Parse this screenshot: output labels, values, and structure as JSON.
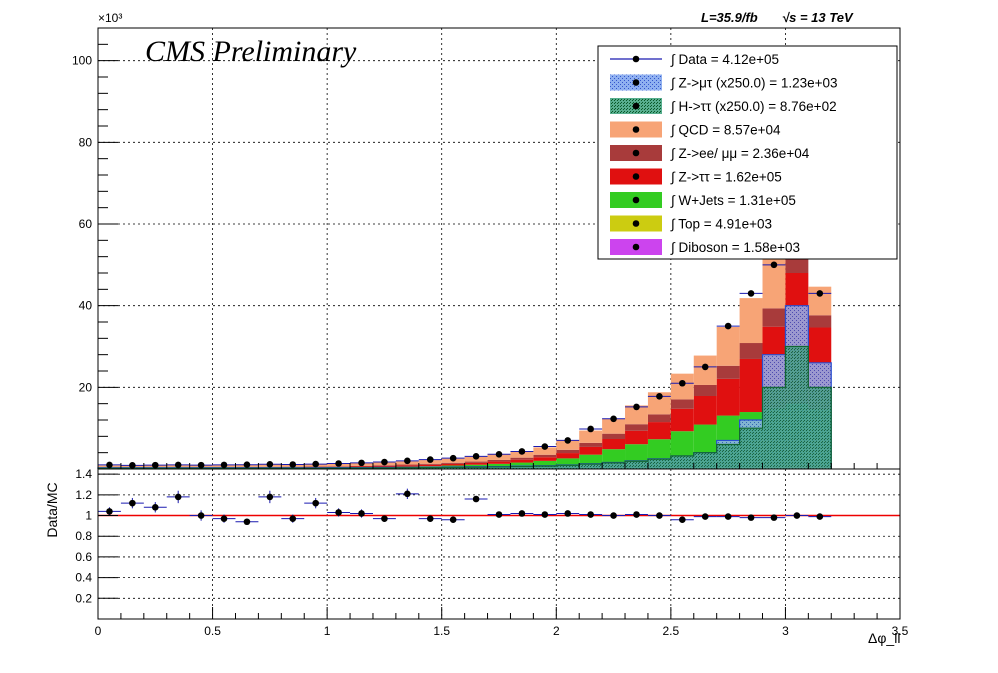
{
  "header": {
    "exponent_label": "×10³",
    "lumi_label": "L=35.9/fb",
    "sqrt_s_label": "√s = 13 TeV",
    "cms_label": "CMS Preliminary"
  },
  "colors": {
    "data": "#000000",
    "data_error": "#1a1ab0",
    "z_mutau": "#5b7fe0",
    "h_tautau": "#1f8a3a",
    "qcd": "#f7a476",
    "z_eemumu": "#a83b3b",
    "z_tautau": "#e01010",
    "w_jets": "#33cc22",
    "top": "#cccc11",
    "diboson": "#cc44ee",
    "ratio_line": "#ee0000"
  },
  "chart_data": [
    {
      "type": "bar",
      "subtype": "stacked-histogram",
      "xlim": [
        0,
        3.5
      ],
      "ylim": [
        0,
        108000
      ],
      "y_ticks": [
        20000,
        40000,
        60000,
        80000,
        100000
      ],
      "y_tick_labels": [
        "20",
        "40",
        "60",
        "80",
        "100"
      ],
      "y_exponent": "×10³",
      "grid": true,
      "legend_position": "top-right",
      "bin_edges": [
        0.0,
        0.1,
        0.2,
        0.3,
        0.4,
        0.5,
        0.6,
        0.7,
        0.8,
        0.9,
        1.0,
        1.1,
        1.2,
        1.3,
        1.4,
        1.5,
        1.6,
        1.7,
        1.8,
        1.9,
        2.0,
        2.1,
        2.2,
        2.3,
        2.4,
        2.5,
        2.6,
        2.7,
        2.8,
        2.9,
        3.0,
        3.1,
        3.2
      ],
      "stack_order": [
        "diboson",
        "top",
        "w_jets",
        "z_tautau",
        "z_eemumu",
        "qcd"
      ],
      "series": [
        {
          "key": "diboson",
          "legend": "∫ Diboson = 1.58e+03",
          "values": [
            5,
            5,
            5,
            5,
            5,
            5,
            5,
            5,
            5,
            5,
            5,
            10,
            10,
            10,
            10,
            10,
            10,
            15,
            15,
            20,
            20,
            20,
            30,
            30,
            30,
            50,
            50,
            80,
            100,
            150,
            200,
            150
          ]
        },
        {
          "key": "top",
          "legend": "∫ Top = 4.91e+03",
          "values": [
            10,
            10,
            10,
            10,
            10,
            10,
            10,
            10,
            15,
            15,
            15,
            20,
            20,
            30,
            30,
            40,
            40,
            50,
            60,
            70,
            80,
            90,
            120,
            140,
            160,
            200,
            230,
            300,
            350,
            500,
            600,
            500
          ]
        },
        {
          "key": "w_jets",
          "legend": "∫ W+Jets = 1.31e+05",
          "values": [
            180,
            200,
            200,
            200,
            230,
            230,
            250,
            260,
            270,
            300,
            350,
            400,
            450,
            550,
            650,
            800,
            1000,
            1200,
            1500,
            1900,
            2500,
            3400,
            4700,
            5900,
            7100,
            9000,
            10600,
            12700,
            13500,
            14200,
            15200,
            14000
          ]
        },
        {
          "key": "z_tautau",
          "legend": "∫ Z->ττ = 1.62e+05",
          "values": [
            100,
            100,
            100,
            100,
            100,
            100,
            120,
            140,
            150,
            160,
            180,
            200,
            250,
            300,
            350,
            400,
            450,
            550,
            700,
            900,
            1300,
            1900,
            2500,
            3300,
            4200,
            5500,
            7000,
            9000,
            13000,
            20000,
            32000,
            20000
          ]
        },
        {
          "key": "z_eemumu",
          "legend": "∫ Z->ee/ μμ = 2.36e+04",
          "values": [
            100,
            100,
            100,
            100,
            100,
            100,
            100,
            100,
            120,
            120,
            130,
            150,
            170,
            200,
            240,
            280,
            320,
            400,
            500,
            600,
            800,
            1000,
            1300,
            1600,
            1900,
            2300,
            2700,
            3200,
            3900,
            4500,
            5500,
            3000
          ]
        },
        {
          "key": "qcd",
          "legend": "∫ QCD = 8.57e+04",
          "values": [
            450,
            480,
            480,
            500,
            500,
            500,
            530,
            560,
            580,
            600,
            650,
            700,
            750,
            800,
            900,
            1000,
            1200,
            1350,
            1550,
            1800,
            2300,
            3000,
            3700,
            4600,
            5400,
            6300,
            7200,
            9500,
            11000,
            12500,
            14000,
            7000
          ]
        },
        {
          "key": "z_mutau",
          "legend": "∫ Z->μτ (x250.0) = 1.23e+03",
          "overlay": true,
          "values": [
            300,
            300,
            300,
            300,
            300,
            300,
            300,
            300,
            300,
            300,
            350,
            350,
            400,
            400,
            450,
            500,
            550,
            600,
            700,
            800,
            1000,
            1300,
            1600,
            2000,
            2500,
            3200,
            4000,
            7000,
            12000,
            28000,
            40000,
            26000
          ]
        },
        {
          "key": "h_tautau",
          "legend": "∫ H->ττ (x250.0) = 8.76e+02",
          "overlay": true,
          "values": [
            200,
            200,
            200,
            200,
            200,
            200,
            200,
            200,
            200,
            200,
            230,
            250,
            280,
            300,
            340,
            380,
            430,
            500,
            600,
            700,
            900,
            1200,
            1500,
            1900,
            2400,
            3200,
            4000,
            6000,
            10000,
            20000,
            30000,
            20000
          ]
        }
      ],
      "data_series": {
        "legend": "∫ Data = 4.12e+05",
        "x": [
          0.05,
          0.15,
          0.25,
          0.35,
          0.45,
          0.55,
          0.65,
          0.75,
          0.85,
          0.95,
          1.05,
          1.15,
          1.25,
          1.35,
          1.45,
          1.55,
          1.65,
          1.75,
          1.85,
          1.95,
          2.05,
          2.15,
          2.25,
          2.35,
          2.45,
          2.55,
          2.65,
          2.75,
          2.85,
          2.95,
          3.05,
          3.15
        ],
        "values": [
          1000,
          900,
          950,
          1000,
          950,
          1000,
          1050,
          1150,
          1100,
          1200,
          1350,
          1500,
          1700,
          2000,
          2300,
          2650,
          3100,
          3600,
          4300,
          5500,
          7000,
          9800,
          12300,
          15200,
          17800,
          21000,
          25000,
          35000,
          43000,
          50000,
          58000,
          43000
        ]
      },
      "legend_order": [
        "data",
        "z_mutau",
        "h_tautau",
        "qcd",
        "z_eemumu",
        "z_tautau",
        "w_jets",
        "top",
        "diboson"
      ]
    },
    {
      "type": "scatter",
      "subtype": "ratio",
      "ylabel": "Data/MC",
      "xlabel": "Δφ_ll",
      "xlim": [
        0,
        3.5
      ],
      "ylim": [
        0,
        1.45
      ],
      "y_ticks": [
        0.2,
        0.4,
        0.6,
        0.8,
        1.0,
        1.2,
        1.4
      ],
      "y_tick_labels": [
        "0.2",
        "0.4",
        "0.6",
        "0.8",
        "1",
        "1.2",
        "1.4"
      ],
      "x_ticks": [
        0,
        0.5,
        1,
        1.5,
        2,
        2.5,
        3,
        3.5
      ],
      "x_tick_labels": [
        "0",
        "0.5",
        "1",
        "1.5",
        "2",
        "2.5",
        "3",
        "3.5"
      ],
      "reference_line": 1.0,
      "grid": true,
      "x": [
        0.05,
        0.15,
        0.25,
        0.35,
        0.45,
        0.55,
        0.65,
        0.75,
        0.85,
        0.95,
        1.05,
        1.15,
        1.25,
        1.35,
        1.45,
        1.55,
        1.65,
        1.75,
        1.85,
        1.95,
        2.05,
        2.15,
        2.25,
        2.35,
        2.45,
        2.55,
        2.65,
        2.75,
        2.85,
        2.95,
        3.05,
        3.15
      ],
      "values": [
        1.04,
        1.12,
        1.08,
        1.18,
        1.0,
        0.97,
        0.94,
        1.18,
        0.97,
        1.12,
        1.03,
        1.02,
        0.97,
        1.21,
        0.97,
        0.96,
        1.16,
        1.01,
        1.02,
        1.01,
        1.02,
        1.01,
        1.0,
        1.01,
        1.0,
        0.96,
        0.99,
        0.99,
        0.98,
        0.98,
        1.0,
        0.99
      ],
      "errors": [
        0.04,
        0.05,
        0.05,
        0.06,
        0.05,
        0.04,
        0.03,
        0.06,
        0.04,
        0.05,
        0.04,
        0.04,
        0.03,
        0.05,
        0.03,
        0.03,
        0.03,
        0.02,
        0.02,
        0.02,
        0.015,
        0.012,
        0.01,
        0.01,
        0.01,
        0.01,
        0.01,
        0.008,
        0.008,
        0.008,
        0.008,
        0.008
      ]
    }
  ]
}
